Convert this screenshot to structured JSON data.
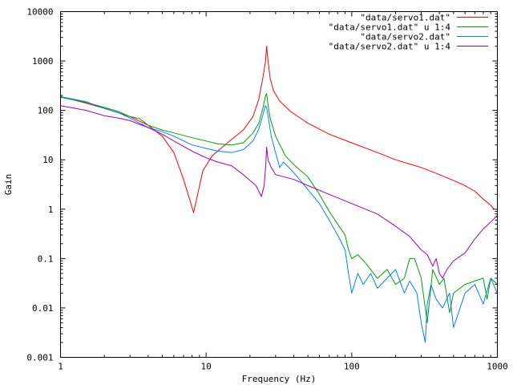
{
  "chart_data": {
    "type": "line",
    "title": "",
    "xlabel": "Frequency (Hz)",
    "ylabel": "Gain",
    "x_scale": "log",
    "y_scale": "log",
    "xlim": [
      1,
      1000
    ],
    "ylim": [
      0.001,
      10000
    ],
    "x_ticks": [
      {
        "value": 1,
        "label": "1"
      },
      {
        "value": 10,
        "label": "10"
      },
      {
        "value": 100,
        "label": "100"
      },
      {
        "value": 1000,
        "label": "1000"
      }
    ],
    "y_ticks": [
      {
        "value": 0.001,
        "label": "0.001"
      },
      {
        "value": 0.01,
        "label": "0.01"
      },
      {
        "value": 0.1,
        "label": "0.1"
      },
      {
        "value": 1,
        "label": "1"
      },
      {
        "value": 10,
        "label": "10"
      },
      {
        "value": 100,
        "label": "100"
      },
      {
        "value": 1000,
        "label": "1000"
      },
      {
        "value": 10000,
        "label": "10000"
      }
    ],
    "grid": false,
    "legend_position": "top-right",
    "series": [
      {
        "name": "\"data/servo1.dat\"",
        "color": "#ff0000",
        "points": [
          [
            1,
            190
          ],
          [
            1.5,
            140
          ],
          [
            2,
            110
          ],
          [
            3,
            75
          ],
          [
            4,
            50
          ],
          [
            5,
            30
          ],
          [
            6,
            14
          ],
          [
            7,
            4
          ],
          [
            7.8,
            1.4
          ],
          [
            8.2,
            0.85
          ],
          [
            8.6,
            1.6
          ],
          [
            9.5,
            6
          ],
          [
            11,
            12
          ],
          [
            14,
            22
          ],
          [
            18,
            40
          ],
          [
            21,
            75
          ],
          [
            23,
            170
          ],
          [
            24.5,
            450
          ],
          [
            25.6,
            1000
          ],
          [
            26,
            2000
          ],
          [
            26.6,
            1000
          ],
          [
            27.5,
            450
          ],
          [
            29,
            250
          ],
          [
            32,
            155
          ],
          [
            38,
            95
          ],
          [
            50,
            55
          ],
          [
            70,
            33
          ],
          [
            100,
            22
          ],
          [
            150,
            14
          ],
          [
            200,
            10
          ],
          [
            300,
            7
          ],
          [
            400,
            5
          ],
          [
            500,
            3.8
          ],
          [
            600,
            3
          ],
          [
            700,
            2.3
          ],
          [
            800,
            1.6
          ],
          [
            900,
            1.2
          ],
          [
            950,
            1.0
          ],
          [
            1000,
            0.98
          ]
        ]
      },
      {
        "name": "\"data/servo1.dat\" u 1:4",
        "color": "#00a000",
        "points": [
          [
            1,
            185
          ],
          [
            1.5,
            145
          ],
          [
            2,
            115
          ],
          [
            2.5,
            95
          ],
          [
            3,
            75
          ],
          [
            3.5,
            68
          ],
          [
            4,
            50
          ],
          [
            5,
            40
          ],
          [
            6,
            35
          ],
          [
            8,
            28
          ],
          [
            10,
            24
          ],
          [
            12,
            21
          ],
          [
            15,
            20
          ],
          [
            18,
            22
          ],
          [
            21,
            35
          ],
          [
            23,
            55
          ],
          [
            24.5,
            110
          ],
          [
            25.5,
            190
          ],
          [
            26,
            220
          ],
          [
            26.5,
            140
          ],
          [
            27.5,
            70
          ],
          [
            30,
            30
          ],
          [
            35,
            12
          ],
          [
            40,
            8
          ],
          [
            50,
            4.5
          ],
          [
            60,
            2
          ],
          [
            70,
            0.9
          ],
          [
            80,
            0.5
          ],
          [
            90,
            0.3
          ],
          [
            95,
            0.15
          ],
          [
            100,
            0.1
          ],
          [
            110,
            0.12
          ],
          [
            125,
            0.08
          ],
          [
            150,
            0.04
          ],
          [
            175,
            0.06
          ],
          [
            200,
            0.03
          ],
          [
            230,
            0.04
          ],
          [
            250,
            0.1
          ],
          [
            270,
            0.1
          ],
          [
            300,
            0.04
          ],
          [
            330,
            0.005
          ],
          [
            360,
            0.06
          ],
          [
            400,
            0.03
          ],
          [
            430,
            0.04
          ],
          [
            470,
            0.008
          ],
          [
            500,
            0.02
          ],
          [
            600,
            0.03
          ],
          [
            700,
            0.035
          ],
          [
            800,
            0.04
          ],
          [
            850,
            0.015
          ],
          [
            900,
            0.04
          ],
          [
            1000,
            0.03
          ]
        ]
      },
      {
        "name": "\"data/servo2.dat\"",
        "color": "#0080ff",
        "points": [
          [
            1,
            190
          ],
          [
            1.5,
            150
          ],
          [
            2,
            110
          ],
          [
            2.5,
            90
          ],
          [
            3,
            70
          ],
          [
            3.5,
            55
          ],
          [
            4,
            45
          ],
          [
            5,
            37
          ],
          [
            6,
            30
          ],
          [
            8,
            20
          ],
          [
            10,
            17
          ],
          [
            12,
            15
          ],
          [
            15,
            14
          ],
          [
            18,
            16
          ],
          [
            21,
            24
          ],
          [
            23,
            42
          ],
          [
            24.5,
            80
          ],
          [
            25.5,
            125
          ],
          [
            26,
            115
          ],
          [
            27,
            60
          ],
          [
            28,
            30
          ],
          [
            30,
            14
          ],
          [
            32,
            7
          ],
          [
            34,
            9
          ],
          [
            40,
            5.5
          ],
          [
            50,
            2.5
          ],
          [
            60,
            1.3
          ],
          [
            70,
            0.6
          ],
          [
            80,
            0.3
          ],
          [
            90,
            0.15
          ],
          [
            95,
            0.05
          ],
          [
            100,
            0.02
          ],
          [
            110,
            0.05
          ],
          [
            120,
            0.03
          ],
          [
            135,
            0.05
          ],
          [
            150,
            0.025
          ],
          [
            175,
            0.04
          ],
          [
            200,
            0.06
          ],
          [
            230,
            0.02
          ],
          [
            250,
            0.035
          ],
          [
            280,
            0.02
          ],
          [
            300,
            0.005
          ],
          [
            320,
            0.002
          ],
          [
            330,
            0.012
          ],
          [
            350,
            0.03
          ],
          [
            380,
            0.015
          ],
          [
            420,
            0.01
          ],
          [
            470,
            0.02
          ],
          [
            500,
            0.004
          ],
          [
            600,
            0.02
          ],
          [
            700,
            0.03
          ],
          [
            800,
            0.012
          ],
          [
            900,
            0.04
          ],
          [
            1000,
            0.02
          ]
        ]
      },
      {
        "name": "\"data/servo2.dat\" u 1:4",
        "color": "#a000c0",
        "points": [
          [
            1,
            125
          ],
          [
            1.5,
            100
          ],
          [
            2,
            78
          ],
          [
            2.5,
            70
          ],
          [
            3,
            62
          ],
          [
            3.5,
            52
          ],
          [
            4,
            45
          ],
          [
            5,
            33
          ],
          [
            6,
            24
          ],
          [
            8,
            15
          ],
          [
            10,
            11
          ],
          [
            12,
            9
          ],
          [
            15,
            7.5
          ],
          [
            18,
            5
          ],
          [
            22,
            3
          ],
          [
            24,
            1.8
          ],
          [
            25,
            3
          ],
          [
            25.7,
            8
          ],
          [
            26,
            18
          ],
          [
            26.6,
            10
          ],
          [
            28,
            7
          ],
          [
            30,
            5
          ],
          [
            40,
            4
          ],
          [
            50,
            3
          ],
          [
            70,
            2
          ],
          [
            100,
            1.3
          ],
          [
            150,
            0.8
          ],
          [
            200,
            0.45
          ],
          [
            250,
            0.28
          ],
          [
            300,
            0.15
          ],
          [
            330,
            0.12
          ],
          [
            360,
            0.07
          ],
          [
            380,
            0.1
          ],
          [
            400,
            0.05
          ],
          [
            420,
            0.04
          ],
          [
            450,
            0.06
          ],
          [
            500,
            0.09
          ],
          [
            600,
            0.13
          ],
          [
            700,
            0.25
          ],
          [
            800,
            0.4
          ],
          [
            900,
            0.55
          ],
          [
            1000,
            0.75
          ]
        ]
      }
    ]
  }
}
